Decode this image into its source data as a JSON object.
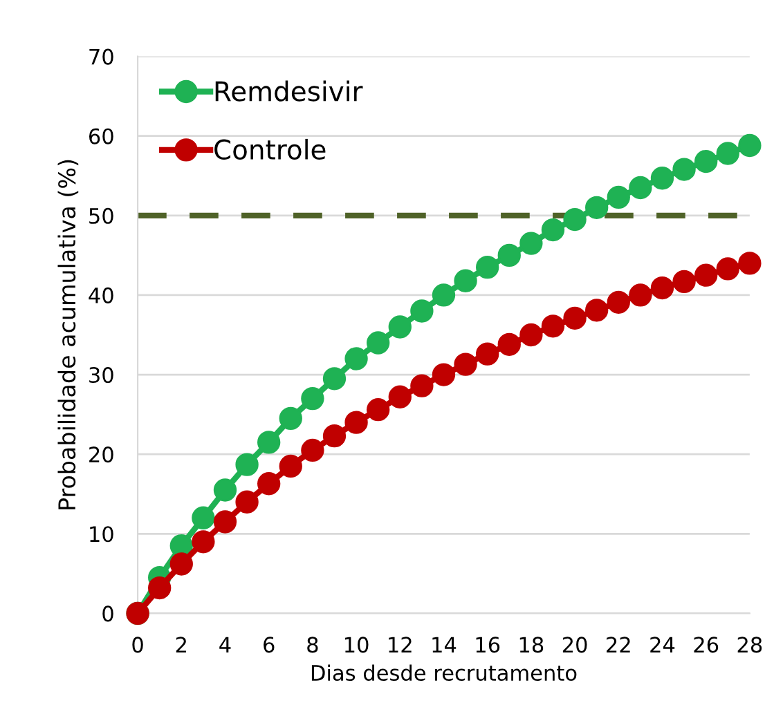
{
  "chart_data": {
    "type": "line",
    "xlabel": "Dias desde recrutamento",
    "ylabel": "Probabilidade acumulativa (%)",
    "x": [
      0,
      1,
      2,
      3,
      4,
      5,
      6,
      7,
      8,
      9,
      10,
      11,
      12,
      13,
      14,
      15,
      16,
      17,
      18,
      19,
      20,
      21,
      22,
      23,
      24,
      25,
      26,
      27,
      28
    ],
    "series": [
      {
        "name": "Remdesivir",
        "color": "#1fb254",
        "values": [
          0,
          4.5,
          8.5,
          12,
          15.5,
          18.7,
          21.5,
          24.5,
          27,
          29.5,
          32,
          34,
          36,
          38,
          40,
          41.8,
          43.5,
          45,
          46.5,
          48.2,
          49.5,
          51,
          52.3,
          53.5,
          54.7,
          55.8,
          56.8,
          57.8,
          58.8
        ]
      },
      {
        "name": "Controle",
        "color": "#c00000",
        "values": [
          0,
          3.2,
          6.2,
          9,
          11.5,
          14,
          16.3,
          18.5,
          20.5,
          22.3,
          24,
          25.6,
          27.2,
          28.6,
          30,
          31.3,
          32.6,
          33.8,
          35,
          36.1,
          37.1,
          38.1,
          39.1,
          40,
          40.9,
          41.7,
          42.5,
          43.3,
          44
        ]
      }
    ],
    "ref_lines": [
      {
        "axis": "y",
        "value": 50,
        "color": "#4f6228",
        "line_style": "dashed"
      }
    ],
    "xlim": [
      0,
      28
    ],
    "xticks": [
      0,
      2,
      4,
      6,
      8,
      10,
      12,
      14,
      16,
      18,
      20,
      22,
      24,
      26,
      28
    ],
    "ylim": [
      0,
      70
    ],
    "yticks": [
      0,
      10,
      20,
      30,
      40,
      50,
      60,
      70
    ],
    "grid": "y",
    "legend": "top left",
    "marker": "circle",
    "line_style": "solid"
  }
}
